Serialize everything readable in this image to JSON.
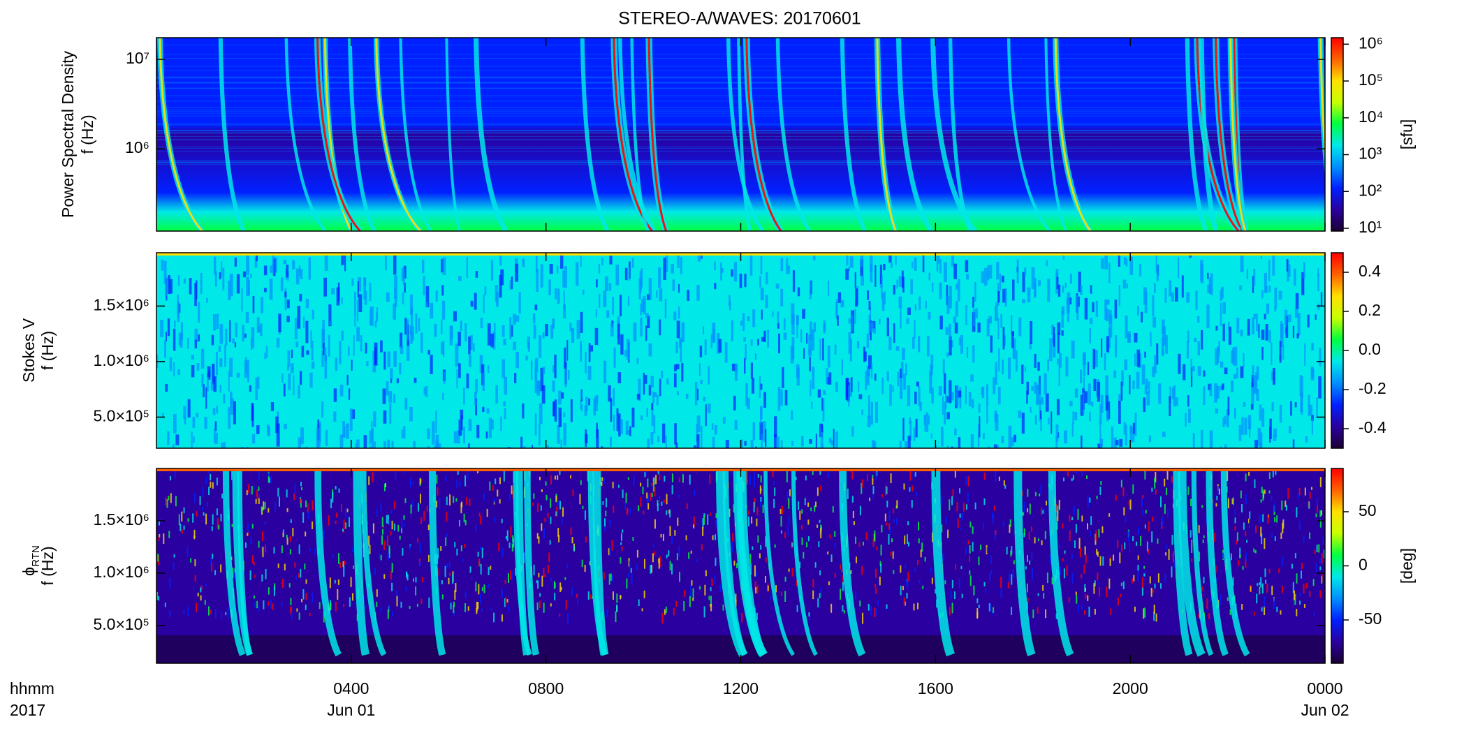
{
  "chart_data": [
    {
      "type": "spectrogram",
      "title": "STEREO-A/WAVES: 20170601",
      "ylabel": [
        "Power Spectral Density",
        "f (Hz)"
      ],
      "ylog": true,
      "ylim": [
        120000,
        17500000
      ],
      "yticks": [
        {
          "value": 1000000,
          "label": "10⁶"
        },
        {
          "value": 10000000,
          "label": "10⁷"
        }
      ],
      "clog": true,
      "clim": [
        8.4,
        1500000
      ],
      "cticks": [
        {
          "value": 10,
          "label": "10¹"
        },
        {
          "value": 100,
          "label": "10²"
        },
        {
          "value": 1000,
          "label": "10³"
        },
        {
          "value": 10000,
          "label": "10⁴"
        },
        {
          "value": 100000,
          "label": "10⁵"
        },
        {
          "value": 1000000,
          "label": "10⁶"
        }
      ],
      "clabel": "[sfu]",
      "colormap": [
        "#1a0033",
        "#2a00a0",
        "#0020ff",
        "#0090ff",
        "#00e8e8",
        "#00ff40",
        "#c8ff00",
        "#ffe000",
        "#ff6000",
        "#ff0000"
      ]
    },
    {
      "type": "spectrogram",
      "ylabel": [
        "Stokes V",
        "f (Hz)"
      ],
      "ylog": false,
      "ylim": [
        220000,
        1980000
      ],
      "yticks": [
        {
          "value": 500000,
          "label": "5.0×10⁵"
        },
        {
          "value": 1000000,
          "label": "1.0×10⁶"
        },
        {
          "value": 1500000,
          "label": "1.5×10⁶"
        }
      ],
      "clog": false,
      "clim": [
        -0.5,
        0.5
      ],
      "cticks": [
        -0.4,
        -0.2,
        {
          "value": 0,
          "label": "0.0"
        },
        0.2,
        0.4
      ]
    },
    {
      "type": "spectrogram",
      "ylabel": [
        "ϕ",
        "f (Hz)"
      ],
      "ylabel_sub": "RTN",
      "ylog": false,
      "ylim": [
        140000,
        2000000
      ],
      "yticks": [
        {
          "value": 500000,
          "label": "5.0×10⁵"
        },
        {
          "value": 1000000,
          "label": "1.0×10⁶"
        },
        {
          "value": 1500000,
          "label": "1.5×10⁶"
        }
      ],
      "clog": false,
      "clim": [
        -90,
        90
      ],
      "cticks": [
        -50,
        0,
        50
      ],
      "clabel": "[deg]",
      "xlim": [
        0,
        24
      ],
      "xticks": [
        {
          "value": 4,
          "label": "0400"
        },
        {
          "value": 8,
          "label": "0800"
        },
        {
          "value": 12,
          "label": "1200"
        },
        {
          "value": 16,
          "label": "1600"
        },
        {
          "value": 20,
          "label": "2000"
        },
        {
          "value": 24,
          "label": "0000"
        }
      ],
      "xticks2": [
        {
          "value": 4,
          "label": "Jun 01"
        },
        {
          "value": 24,
          "label": "Jun 02"
        }
      ],
      "xlabel": [
        "hhmm",
        "2017"
      ]
    }
  ]
}
